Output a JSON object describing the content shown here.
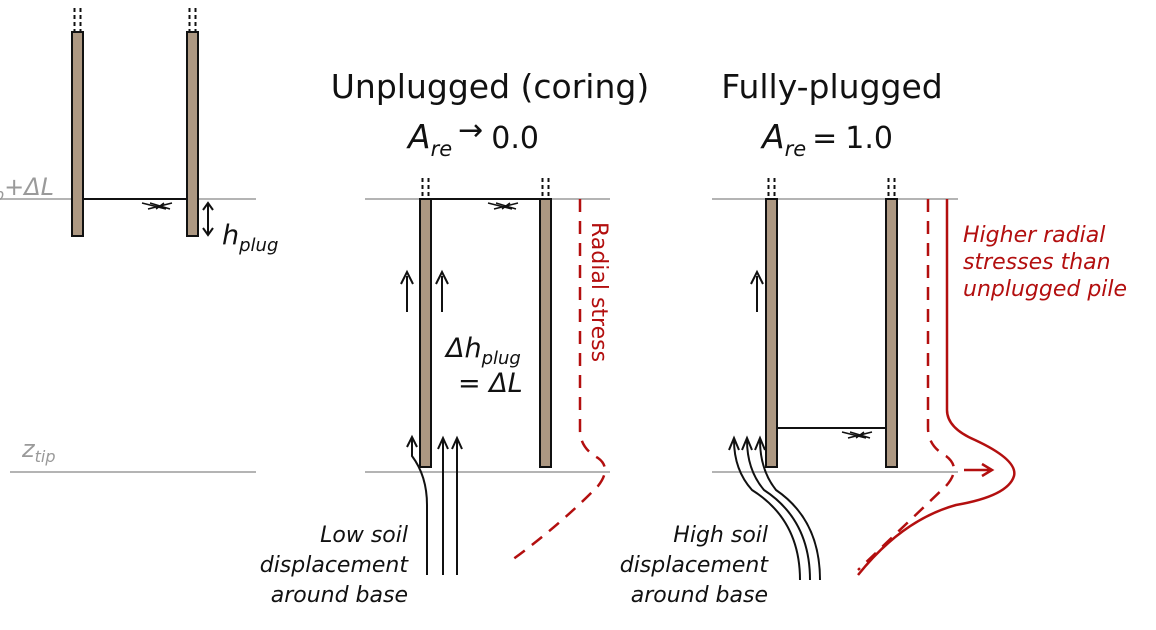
{
  "colors": {
    "pile_fill": "#ad9882",
    "pile_outline": "#111111",
    "ground_line": "#b4b4b4",
    "stress_red": "#b30f0f",
    "text_black": "#111111",
    "text_grey": "#9a9a9a"
  },
  "left_panel": {
    "level_label_tail": "p",
    "level_label_plus": "+ΔL",
    "h_plug_symbol": "h",
    "h_plug_subscript": "plug",
    "z_tip_symbol": "z",
    "z_tip_subscript": "tip"
  },
  "middle_panel": {
    "title": "Unplugged (coring)",
    "ratio_symbol": "A",
    "ratio_subscript": "re",
    "ratio_operator": "→",
    "ratio_value": "0.0",
    "radial_stress_label": "Radial stress",
    "delta_h_symbol": "Δh",
    "delta_h_subscript": "plug",
    "delta_h_equals": "= ΔL",
    "caption_lines": [
      "Low soil",
      "displacement",
      "around base"
    ]
  },
  "right_panel": {
    "title": "Fully-plugged",
    "ratio_symbol": "A",
    "ratio_subscript": "re",
    "ratio_operator": "=",
    "ratio_value": "1.0",
    "stress_caption_lines": [
      "Higher radial",
      "stresses than",
      "unplugged pile"
    ],
    "caption_lines": [
      "High soil",
      "displacement",
      "around base"
    ]
  }
}
